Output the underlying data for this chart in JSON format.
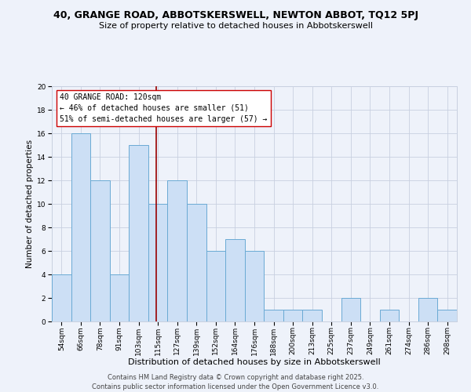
{
  "title": "40, GRANGE ROAD, ABBOTSKERSWELL, NEWTON ABBOT, TQ12 5PJ",
  "subtitle": "Size of property relative to detached houses in Abbotskerswell",
  "xlabel": "Distribution of detached houses by size in Abbotskerswell",
  "ylabel": "Number of detached properties",
  "categories": [
    "54sqm",
    "66sqm",
    "78sqm",
    "91sqm",
    "103sqm",
    "115sqm",
    "127sqm",
    "139sqm",
    "152sqm",
    "164sqm",
    "176sqm",
    "188sqm",
    "200sqm",
    "213sqm",
    "225sqm",
    "237sqm",
    "249sqm",
    "261sqm",
    "274sqm",
    "286sqm",
    "298sqm"
  ],
  "values": [
    4,
    16,
    12,
    4,
    15,
    10,
    12,
    10,
    6,
    7,
    6,
    1,
    1,
    1,
    0,
    2,
    0,
    1,
    0,
    2,
    1
  ],
  "bar_color": "#ccdff5",
  "bar_edge_color": "#6aaad4",
  "vline_x": 5.0,
  "vline_color": "#990000",
  "ylim": [
    0,
    20
  ],
  "yticks": [
    0,
    2,
    4,
    6,
    8,
    10,
    12,
    14,
    16,
    18,
    20
  ],
  "annotation_text_line1": "40 GRANGE ROAD: 120sqm",
  "annotation_text_line2": "← 46% of detached houses are smaller (51)",
  "annotation_text_line3": "51% of semi-detached houses are larger (57) →",
  "footer_line1": "Contains HM Land Registry data © Crown copyright and database right 2025.",
  "footer_line2": "Contains public sector information licensed under the Open Government Licence v3.0.",
  "bg_color": "#eef2fa",
  "plot_bg_color": "#eef2fa",
  "grid_color": "#c8d0e0",
  "title_fontsize": 9,
  "subtitle_fontsize": 8,
  "xlabel_fontsize": 8,
  "ylabel_fontsize": 7.5,
  "tick_fontsize": 6.5,
  "footer_fontsize": 6,
  "annotation_fontsize": 7
}
